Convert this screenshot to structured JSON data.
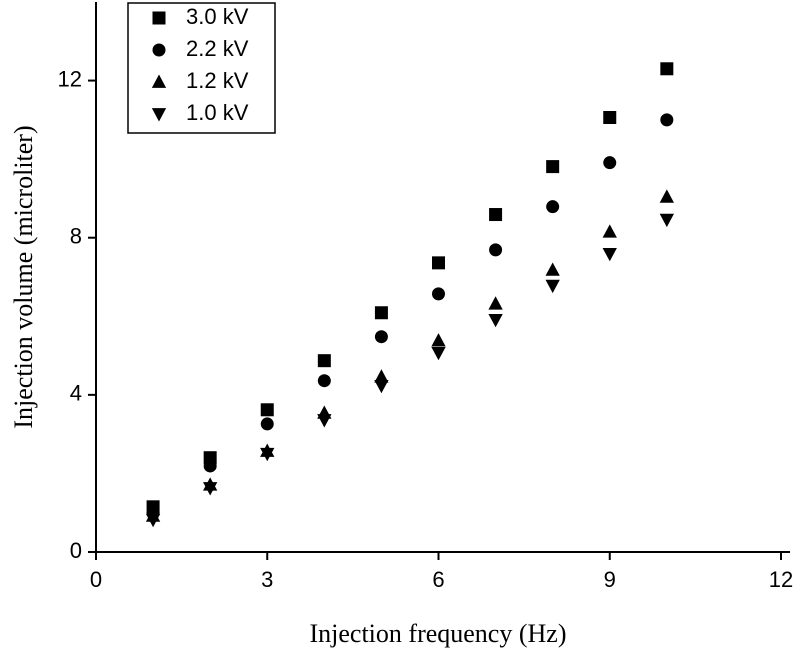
{
  "chart_data": {
    "type": "scatter",
    "x_label": "Injection frequency (Hz)",
    "y_label": "Injection volume (microliter)",
    "xlim": [
      0,
      12
    ],
    "xticks": [
      0,
      3,
      6,
      9,
      12
    ],
    "ylim": [
      0,
      14
    ],
    "yticks": [
      0,
      4,
      8,
      12
    ],
    "legend": "top-left",
    "series": [
      {
        "name": "3.0 kV",
        "color": "#000000",
        "marker": "square",
        "x": [
          1,
          2,
          3,
          4,
          5,
          6,
          7,
          8,
          9,
          10
        ],
        "values": [
          1.15,
          2.4,
          3.62,
          4.87,
          6.09,
          7.36,
          8.59,
          9.81,
          11.06,
          12.3
        ]
      },
      {
        "name": "2.2 kV",
        "color": "#000000",
        "marker": "circle",
        "x": [
          1,
          2,
          3,
          4,
          5,
          6,
          7,
          8,
          9,
          10
        ],
        "values": [
          0.99,
          2.19,
          3.26,
          4.36,
          5.48,
          6.57,
          7.69,
          8.79,
          9.91,
          11.0
        ]
      },
      {
        "name": "1.2 kV",
        "color": "#000000",
        "marker": "triangle-up",
        "x": [
          1,
          2,
          3,
          4,
          5,
          6,
          7,
          8,
          9,
          10
        ],
        "values": [
          0.92,
          1.71,
          2.57,
          3.54,
          4.46,
          5.38,
          6.32,
          7.18,
          8.15,
          9.04
        ]
      },
      {
        "name": "1.0 kV",
        "color": "#000000",
        "marker": "triangle-down",
        "x": [
          1,
          2,
          3,
          4,
          5,
          6,
          7,
          8,
          9,
          10
        ],
        "values": [
          0.82,
          1.63,
          2.5,
          3.36,
          4.23,
          5.07,
          5.91,
          6.78,
          7.59,
          8.46
        ]
      }
    ]
  }
}
